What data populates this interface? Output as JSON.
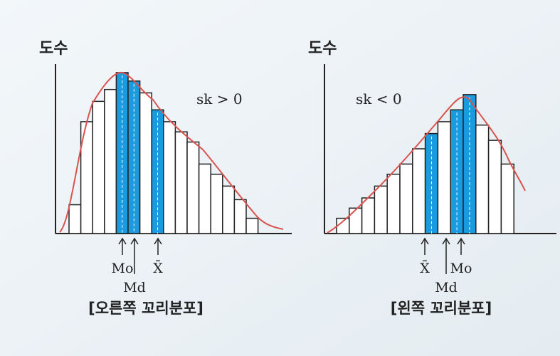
{
  "chart_data": [
    {
      "type": "bar",
      "title": "[오른쪽 꼬리분포]",
      "y_label": "도수",
      "annotation": "sk > 0",
      "categories": [
        null,
        null,
        null,
        null,
        null,
        null,
        null,
        null,
        null,
        null,
        null,
        null,
        null,
        null,
        null,
        null
      ],
      "values": [
        17,
        66,
        78,
        85,
        95,
        90,
        83,
        73,
        66,
        60,
        54,
        41,
        35,
        28,
        20,
        9
      ],
      "colors": [
        "#ffffff",
        "#ffffff",
        "#ffffff",
        "#ffffff",
        "#1a9be0",
        "#1a9be0",
        "#ffffff",
        "#1a9be0",
        "#ffffff",
        "#ffffff",
        "#ffffff",
        "#ffffff",
        "#ffffff",
        "#ffffff",
        "#ffffff",
        "#ffffff"
      ],
      "ylim": [
        0,
        100
      ],
      "markers": [
        "Mo",
        "Md",
        "X̄"
      ]
    },
    {
      "type": "bar",
      "title": "[왼쪽 꼬리분포]",
      "y_label": "도수",
      "annotation": "sk < 0",
      "categories": [
        null,
        null,
        null,
        null,
        null,
        null,
        null,
        null,
        null,
        null,
        null,
        null,
        null,
        null
      ],
      "values": [
        9,
        15,
        21,
        28,
        35,
        41,
        50,
        59,
        66,
        73,
        82,
        64,
        55,
        41
      ],
      "colors": [
        "#ffffff",
        "#ffffff",
        "#ffffff",
        "#ffffff",
        "#ffffff",
        "#ffffff",
        "#ffffff",
        "#1a9be0",
        "#ffffff",
        "#1a9be0",
        "#1a9be0",
        "#ffffff",
        "#ffffff",
        "#ffffff"
      ],
      "ylim": [
        0,
        100
      ],
      "markers": [
        "X̄",
        "Md",
        "Mo"
      ]
    }
  ]
}
